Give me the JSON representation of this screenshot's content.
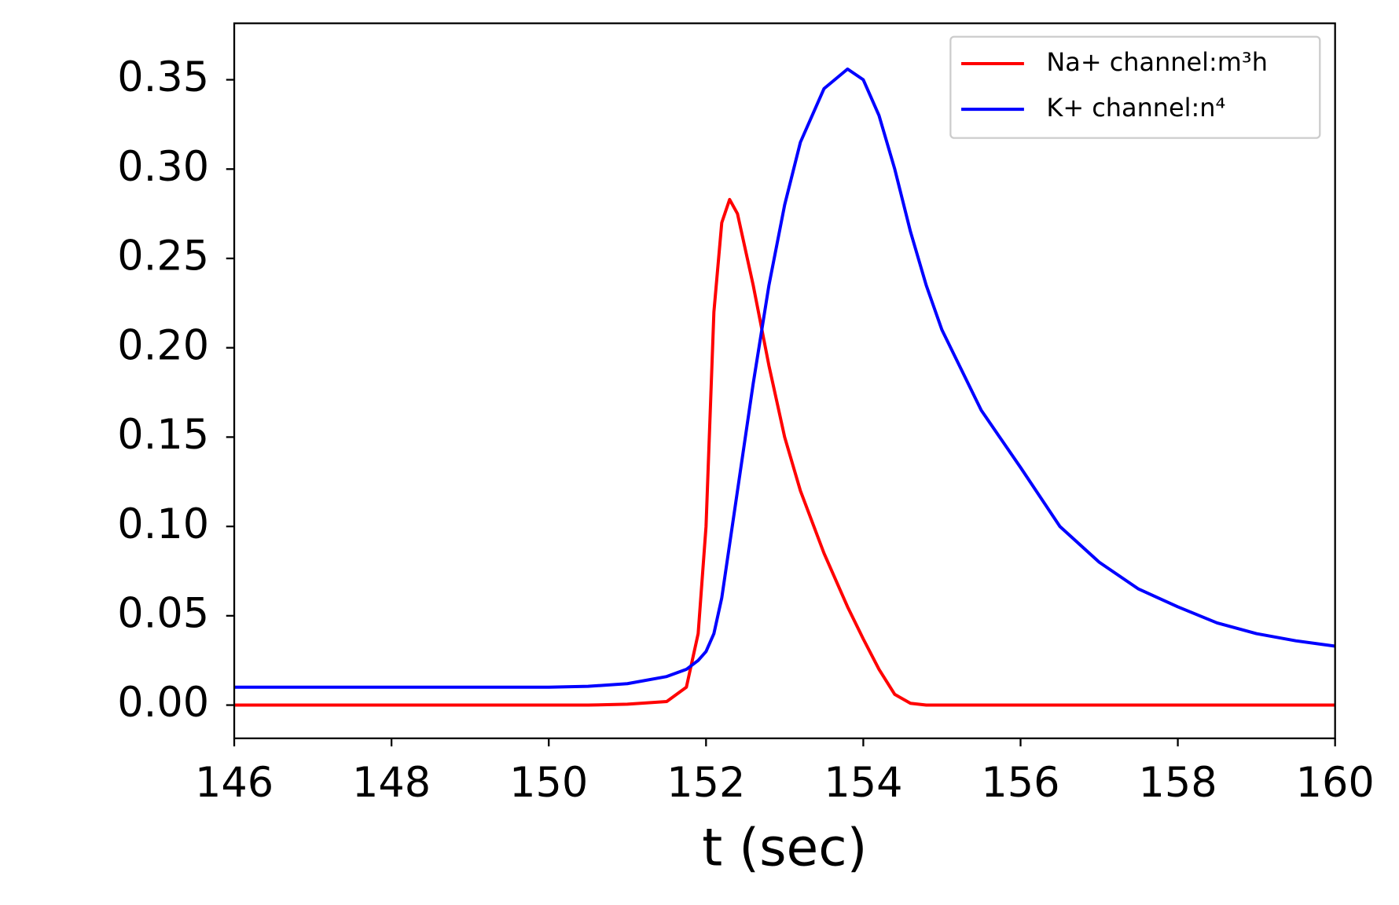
{
  "chart_data": {
    "type": "line",
    "xlabel": "t (sec)",
    "x": [
      146,
      147,
      148,
      149,
      150,
      150.5,
      151,
      151.5,
      151.75,
      151.9,
      152,
      152.1,
      152.2,
      152.3,
      152.4,
      152.6,
      152.8,
      153,
      153.2,
      153.5,
      153.8,
      154,
      154.2,
      154.4,
      154.6,
      154.8,
      155,
      155.5,
      156,
      156.5,
      157,
      157.5,
      158,
      158.5,
      159,
      159.5,
      160
    ],
    "series": [
      {
        "name": "Na+ channel:m³h",
        "color": "#ff0000",
        "values": [
          0,
          0,
          0,
          0,
          0,
          0,
          0.0005,
          0.002,
          0.01,
          0.04,
          0.1,
          0.22,
          0.27,
          0.283,
          0.275,
          0.235,
          0.19,
          0.15,
          0.12,
          0.085,
          0.055,
          0.037,
          0.02,
          0.006,
          0.001,
          0,
          0,
          0,
          0,
          0,
          0,
          0,
          0,
          0,
          0,
          0,
          0
        ]
      },
      {
        "name": "K+ channel:n⁴",
        "color": "#0000ff",
        "values": [
          0.01,
          0.01,
          0.01,
          0.01,
          0.01,
          0.0105,
          0.012,
          0.016,
          0.02,
          0.025,
          0.03,
          0.04,
          0.06,
          0.09,
          0.12,
          0.18,
          0.235,
          0.28,
          0.315,
          0.345,
          0.356,
          0.35,
          0.33,
          0.3,
          0.265,
          0.235,
          0.21,
          0.165,
          0.133,
          0.1,
          0.08,
          0.065,
          0.055,
          0.046,
          0.04,
          0.036,
          0.033
        ]
      }
    ],
    "xlim": [
      146,
      160
    ],
    "xticks": [
      146,
      148,
      150,
      152,
      154,
      156,
      158,
      160
    ],
    "ylim": [
      -0.0186,
      0.3816
    ],
    "yticks": [
      {
        "value": 0,
        "label": "0.00"
      },
      {
        "value": 0.05,
        "label": "0.05"
      },
      {
        "value": 0.1,
        "label": "0.10"
      },
      {
        "value": 0.15,
        "label": "0.15"
      },
      {
        "value": 0.2,
        "label": "0.20"
      },
      {
        "value": 0.25,
        "label": "0.25"
      },
      {
        "value": 0.3,
        "label": "0.30"
      },
      {
        "value": 0.35,
        "label": "0.35"
      }
    ],
    "legend": "upper right",
    "grid": false
  }
}
